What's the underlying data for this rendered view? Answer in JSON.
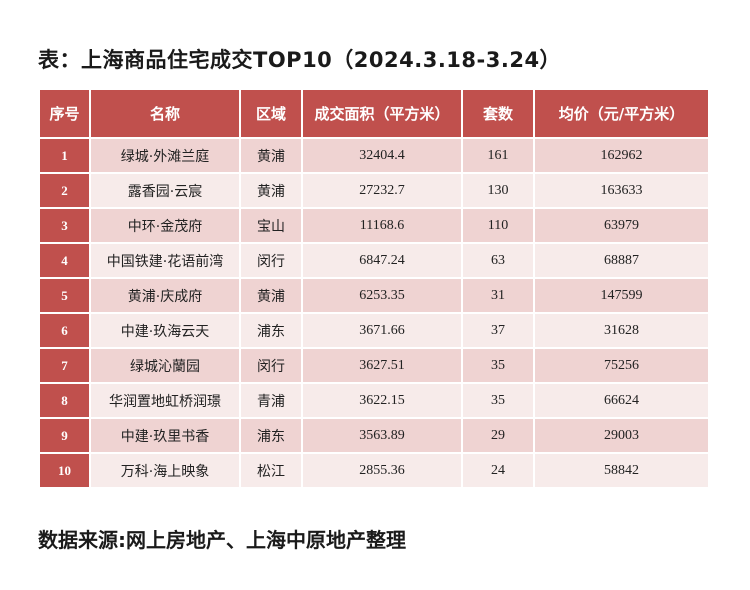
{
  "title": "表：上海商品住宅成交TOP10（2024.3.18-3.24）",
  "table": {
    "headers": [
      "序号",
      "名称",
      "区域",
      "成交面积（平方米）",
      "套数",
      "均价（元/平方米）"
    ],
    "rows": [
      {
        "idx": "1",
        "name": "绿城·外滩兰庭",
        "district": "黄浦",
        "area": "32404.4",
        "units": "161",
        "price": "162962"
      },
      {
        "idx": "2",
        "name": "露香园·云宸",
        "district": "黄浦",
        "area": "27232.7",
        "units": "130",
        "price": "163633"
      },
      {
        "idx": "3",
        "name": "中环·金茂府",
        "district": "宝山",
        "area": "11168.6",
        "units": "110",
        "price": "63979"
      },
      {
        "idx": "4",
        "name": "中国铁建·花语前湾",
        "district": "闵行",
        "area": "6847.24",
        "units": "63",
        "price": "68887"
      },
      {
        "idx": "5",
        "name": "黄浦·庆成府",
        "district": "黄浦",
        "area": "6253.35",
        "units": "31",
        "price": "147599"
      },
      {
        "idx": "6",
        "name": "中建·玖海云天",
        "district": "浦东",
        "area": "3671.66",
        "units": "37",
        "price": "31628"
      },
      {
        "idx": "7",
        "name": "绿城沁蘭园",
        "district": "闵行",
        "area": "3627.51",
        "units": "35",
        "price": "75256"
      },
      {
        "idx": "8",
        "name": "华润置地虹桥润璟",
        "district": "青浦",
        "area": "3622.15",
        "units": "35",
        "price": "66624"
      },
      {
        "idx": "9",
        "name": "中建·玖里书香",
        "district": "浦东",
        "area": "3563.89",
        "units": "29",
        "price": "29003"
      },
      {
        "idx": "10",
        "name": "万科·海上映象",
        "district": "松江",
        "area": "2855.36",
        "units": "24",
        "price": "58842"
      }
    ]
  },
  "source": "数据来源:网上房地产、上海中原地产整理"
}
